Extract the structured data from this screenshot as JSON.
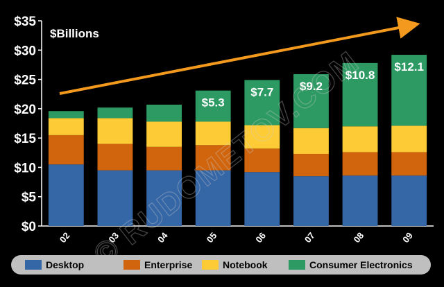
{
  "chart_data": {
    "type": "bar",
    "stacked": true,
    "unit_label": "$Billions",
    "categories": [
      "02",
      "03",
      "04",
      "05",
      "06",
      "07",
      "08",
      "09"
    ],
    "yticks": [
      "$0",
      "$5",
      "$10",
      "$15",
      "$20",
      "$25",
      "$30",
      "$35"
    ],
    "ylim": [
      0,
      35
    ],
    "ystep": 5,
    "grid": false,
    "legend_position": "bottom",
    "series": [
      {
        "name": "Desktop",
        "color": "#3566a5",
        "values": [
          10.5,
          9.5,
          9.5,
          9.5,
          9.2,
          8.5,
          8.6,
          8.6
        ]
      },
      {
        "name": "Enterprise",
        "color": "#d0650e",
        "values": [
          5.0,
          4.5,
          4.0,
          4.3,
          4.0,
          3.8,
          4.0,
          4.0
        ]
      },
      {
        "name": "Notebook",
        "color": "#fccb35",
        "values": [
          2.9,
          4.4,
          4.3,
          4.0,
          4.0,
          4.4,
          4.4,
          4.5
        ]
      },
      {
        "name": "Consumer Electronics",
        "color": "#2e9a63",
        "values": [
          1.2,
          1.8,
          2.9,
          5.3,
          7.7,
          9.2,
          10.8,
          12.1
        ]
      }
    ],
    "data_labels": [
      "",
      "",
      "",
      "$5.3",
      "$7.7",
      "$9.2",
      "$10.8",
      "$12.1"
    ],
    "annotations": {
      "trend_arrow": true,
      "arrow_color": "#f39a1e"
    }
  },
  "watermark": "© RUDOMETOV.COM"
}
